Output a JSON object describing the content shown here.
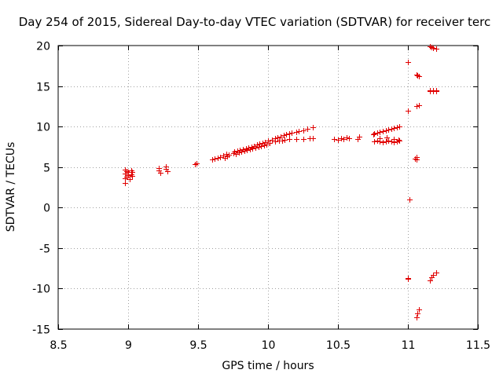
{
  "chart_data": {
    "type": "scatter",
    "title": "Day 254 of 2015, Sidereal Day-to-day VTEC variation (SDTVAR) for receiver terc",
    "xlabel": "GPS time / hours",
    "ylabel": "SDTVAR / TECUs",
    "xlim": [
      8.5,
      11.5
    ],
    "ylim": [
      -15,
      20
    ],
    "x_ticks": [
      8.5,
      9,
      9.5,
      10,
      10.5,
      11,
      11.5
    ],
    "x_tick_labels": [
      "8.5",
      "9",
      "9.5",
      "10",
      "10.5",
      "11",
      "11.5"
    ],
    "y_ticks": [
      -15,
      -10,
      -5,
      0,
      5,
      10,
      15,
      20
    ],
    "y_tick_labels": [
      "-15",
      "-10",
      "-5",
      "0",
      "5",
      "10",
      "15",
      "20"
    ],
    "grid": true,
    "marker": "plus",
    "color": "#e00000",
    "series": [
      {
        "name": "SDTVAR",
        "x": [
          8.98,
          8.98,
          8.98,
          8.98,
          8.99,
          8.99,
          9.0,
          9.0,
          9.01,
          9.02,
          9.02,
          9.03,
          9.03,
          9.22,
          9.22,
          9.23,
          9.27,
          9.27,
          9.28,
          9.48,
          9.49,
          9.6,
          9.62,
          9.64,
          9.66,
          9.68,
          9.69,
          9.7,
          9.71,
          9.72,
          9.75,
          9.76,
          9.77,
          9.78,
          9.79,
          9.8,
          9.81,
          9.82,
          9.83,
          9.84,
          9.85,
          9.86,
          9.87,
          9.88,
          9.89,
          9.9,
          9.91,
          9.92,
          9.93,
          9.94,
          9.95,
          9.96,
          9.97,
          9.98,
          9.99,
          10.0,
          10.01,
          10.03,
          10.05,
          10.07,
          10.09,
          10.11,
          10.13,
          10.15,
          10.17,
          10.2,
          10.22,
          10.25,
          10.28,
          10.32,
          10.05,
          10.08,
          10.1,
          10.12,
          10.15,
          10.2,
          10.25,
          10.3,
          10.32,
          10.47,
          10.5,
          10.52,
          10.54,
          10.56,
          10.58,
          10.64,
          10.65,
          10.75,
          10.76,
          10.78,
          10.8,
          10.82,
          10.84,
          10.86,
          10.88,
          10.9,
          10.92,
          10.94,
          10.76,
          10.78,
          10.8,
          10.82,
          10.84,
          10.86,
          10.88,
          10.9,
          10.92,
          10.94,
          10.8,
          10.85,
          10.9,
          10.93,
          11.0,
          11.0,
          11.01,
          11.05,
          11.06,
          11.07,
          11.08,
          11.06,
          11.08,
          11.16,
          11.17,
          11.18,
          11.2,
          11.16,
          11.18,
          11.2,
          11.16,
          11.18,
          11.2,
          11.06,
          11.06,
          11.0,
          11.0,
          11.16,
          11.17,
          11.18,
          11.2,
          11.06,
          11.07,
          11.08
        ],
        "y": [
          4.7,
          4.2,
          3.6,
          3.0,
          4.5,
          3.8,
          4.4,
          4.0,
          3.5,
          4.6,
          4.1,
          3.9,
          4.4,
          4.9,
          4.6,
          4.3,
          5.1,
          4.8,
          4.5,
          5.4,
          5.5,
          5.9,
          6.0,
          6.1,
          6.2,
          6.4,
          6.1,
          6.6,
          6.3,
          6.5,
          6.7,
          6.9,
          6.6,
          7.0,
          6.8,
          7.1,
          6.9,
          7.2,
          7.0,
          7.3,
          7.1,
          7.4,
          7.2,
          7.5,
          7.3,
          7.6,
          7.4,
          7.8,
          7.5,
          7.9,
          7.6,
          8.0,
          7.7,
          8.1,
          7.8,
          8.3,
          8.0,
          8.4,
          8.6,
          8.7,
          8.8,
          8.9,
          9.0,
          9.1,
          9.2,
          9.3,
          9.4,
          9.5,
          9.7,
          9.9,
          8.2,
          8.3,
          8.3,
          8.4,
          8.5,
          8.5,
          8.5,
          8.6,
          8.6,
          8.5,
          8.4,
          8.6,
          8.5,
          8.7,
          8.6,
          8.5,
          8.8,
          9.0,
          9.1,
          9.2,
          9.3,
          9.4,
          9.5,
          9.6,
          9.7,
          9.8,
          9.9,
          10.0,
          8.2,
          8.3,
          8.2,
          8.1,
          8.2,
          8.3,
          8.2,
          8.1,
          8.2,
          8.3,
          8.6,
          8.7,
          8.5,
          8.4,
          18.0,
          12.0,
          1.0,
          6.0,
          16.4,
          16.3,
          16.2,
          12.5,
          12.6,
          19.9,
          19.8,
          19.7,
          19.6,
          14.5,
          14.5,
          14.5,
          14.4,
          14.4,
          14.4,
          6.2,
          5.9,
          -8.8,
          -8.7,
          -9.0,
          -8.6,
          -8.3,
          -8.0,
          -13.5,
          -13.1,
          -12.6
        ]
      }
    ]
  }
}
